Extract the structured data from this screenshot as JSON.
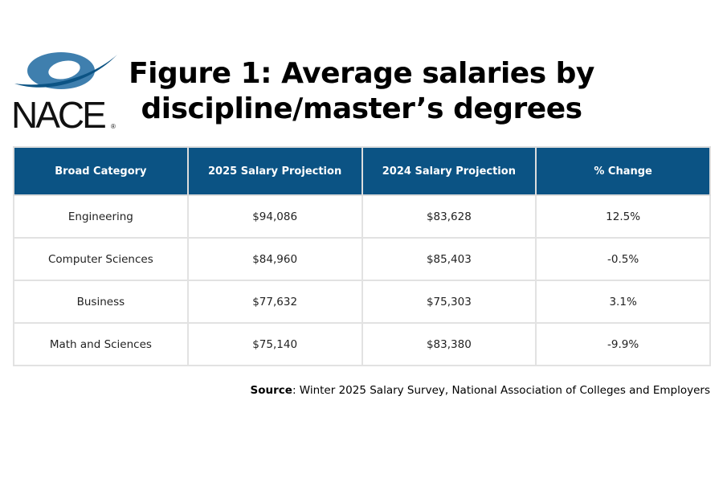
{
  "logo": {
    "text": "NACE",
    "registered": "®"
  },
  "chart_data": {
    "type": "table",
    "title": "Figure 1: Average salaries by discipline/master’s degrees",
    "columns": [
      "Broad Category",
      "2025 Salary Projection",
      "2024 Salary Projection",
      "% Change"
    ],
    "rows": [
      [
        "Engineering",
        "$94,086",
        "$83,628",
        "12.5%"
      ],
      [
        "Computer Sciences",
        "$84,960",
        "$85,403",
        "-0.5%"
      ],
      [
        "Business",
        "$77,632",
        "$75,303",
        "3.1%"
      ],
      [
        "Math and Sciences",
        "$75,140",
        "$83,380",
        "-9.9%"
      ]
    ]
  },
  "source": {
    "label": "Source",
    "text": ": Winter 2025 Salary Survey, National Association of Colleges and Employers"
  },
  "colors": {
    "header_bg": "#0b5384",
    "border": "#e2e2e2"
  }
}
